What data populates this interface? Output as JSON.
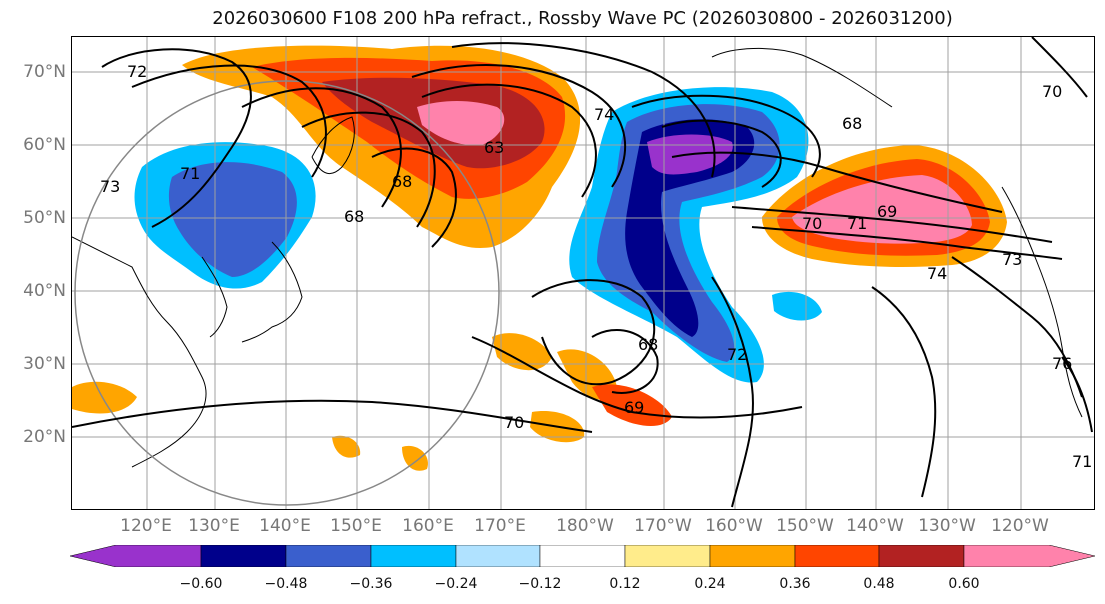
{
  "title": "2026030600 F108 200 hPa refract., Rossby Wave PC (2026030800 - 2026031200)",
  "lat_labels": [
    "70°N",
    "60°N",
    "50°N",
    "40°N",
    "30°N",
    "20°N"
  ],
  "lon_labels": [
    "120°E",
    "130°E",
    "140°E",
    "150°E",
    "160°E",
    "170°E",
    "180°W",
    "170°W",
    "160°W",
    "150°W",
    "140°W",
    "130°W",
    "120°W"
  ],
  "colorbar": {
    "ticks": [
      "−0.60",
      "−0.48",
      "−0.36",
      "−0.24",
      "−0.12",
      "0.12",
      "0.24",
      "0.36",
      "0.48",
      "0.60"
    ],
    "colors": [
      "#9932cc",
      "#00008b",
      "#3a5fcd",
      "#00bfff",
      "#b0e2ff",
      "#ffffff",
      "#ffec8b",
      "#ffa500",
      "#ff4500",
      "#b22222",
      "#ff82ab"
    ]
  },
  "contour_labels": [
    "72",
    "73",
    "71",
    "68",
    "68",
    "63",
    "74",
    "68",
    "70",
    "71",
    "69",
    "73",
    "74",
    "68",
    "72",
    "69",
    "70",
    "71",
    "70",
    "76"
  ]
}
